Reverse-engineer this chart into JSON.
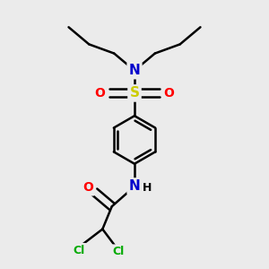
{
  "bg_color": "#ebebeb",
  "atom_colors": {
    "C": "#000000",
    "N": "#0000cc",
    "O": "#ff0000",
    "S": "#cccc00",
    "Cl": "#00aa00",
    "H": "#000000"
  },
  "bond_color": "#000000",
  "bond_width": 1.8,
  "fig_size": [
    3.0,
    3.0
  ],
  "dpi": 100
}
